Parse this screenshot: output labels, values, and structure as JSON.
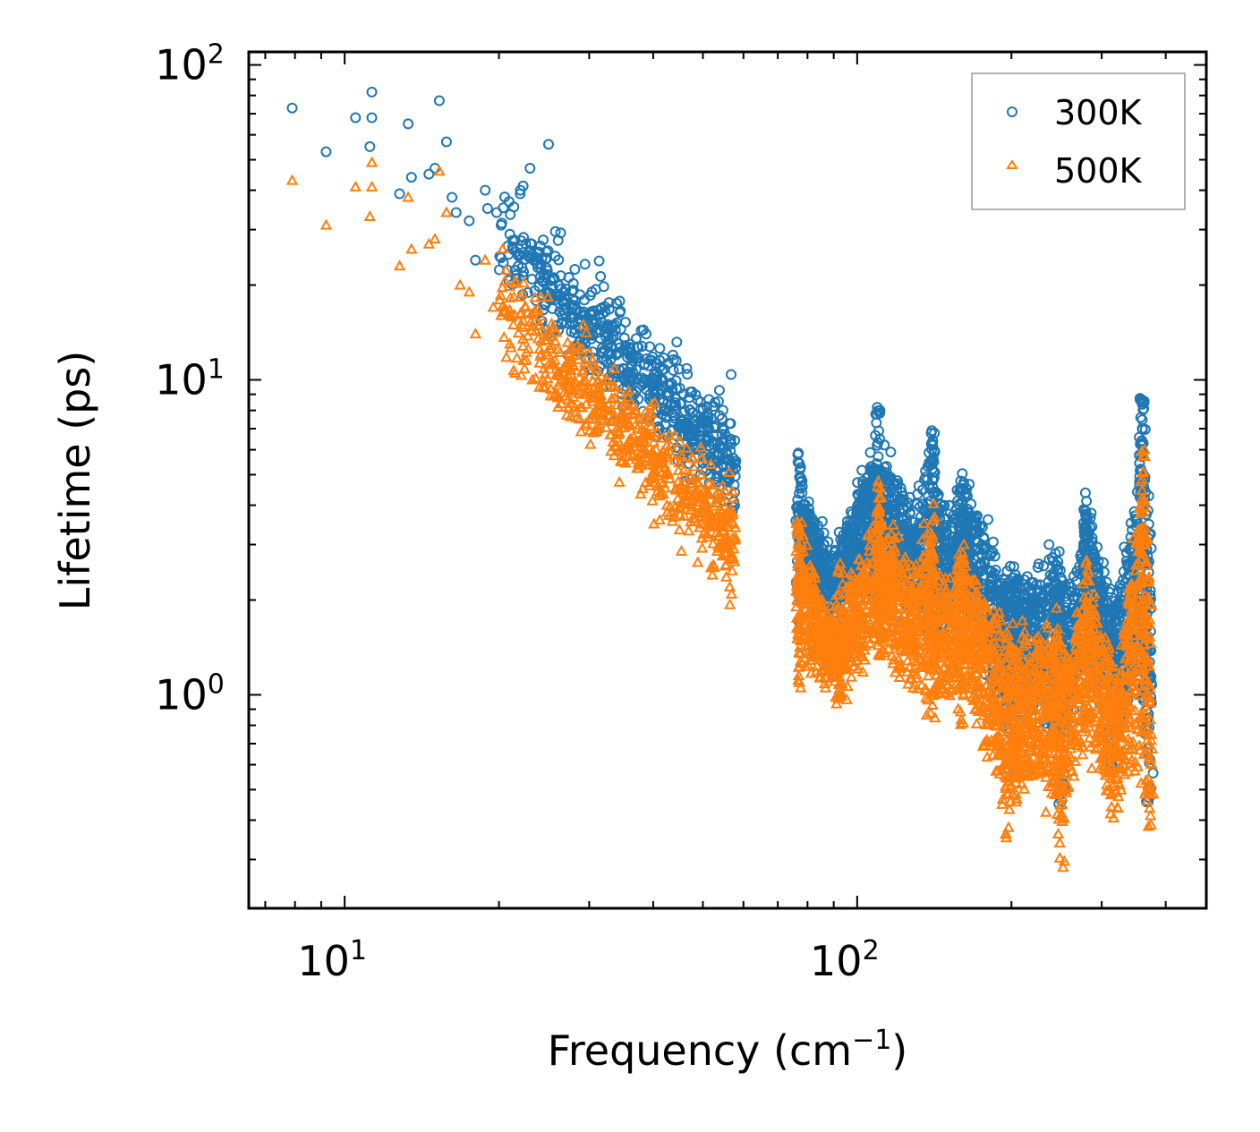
{
  "chart_data": {
    "type": "scatter",
    "xscale": "log",
    "yscale": "log",
    "xlabel": "Frequency (cm",
    "xlabel_sup": "−1",
    "xlabel_end": ")",
    "ylabel": "Lifetime (ps)",
    "xlim": [
      6.5,
      480
    ],
    "ylim": [
      0.21,
      110
    ],
    "xticks": [
      {
        "value": 10,
        "base": "10",
        "exp": "1"
      },
      {
        "value": 100,
        "base": "10",
        "exp": "2"
      }
    ],
    "yticks": [
      {
        "value": 1,
        "base": "10",
        "exp": "0"
      },
      {
        "value": 10,
        "base": "10",
        "exp": "1"
      },
      {
        "value": 100,
        "base": "10",
        "exp": "2"
      }
    ],
    "legend_position": "top-right",
    "series": [
      {
        "name": "300K",
        "marker": "circle",
        "color": "#1f77b4",
        "seed": 7
      },
      {
        "name": "500K",
        "marker": "triangle",
        "color": "#ff7f0e",
        "seed": 13
      }
    ],
    "features": {
      "low_freq_points_300K": [
        [
          7.9,
          73
        ],
        [
          9.2,
          53
        ],
        [
          10.5,
          68
        ],
        [
          11.3,
          82
        ],
        [
          11.3,
          68
        ],
        [
          11.2,
          55
        ],
        [
          12.8,
          39
        ],
        [
          13.3,
          65
        ],
        [
          13.5,
          44
        ],
        [
          14.6,
          45
        ],
        [
          15.0,
          47
        ],
        [
          15.3,
          77
        ],
        [
          15.8,
          57
        ],
        [
          16.2,
          38
        ],
        [
          16.5,
          34
        ],
        [
          17.5,
          32
        ],
        [
          18.0,
          24
        ],
        [
          18.8,
          40
        ],
        [
          19.0,
          35
        ],
        [
          19.8,
          34
        ],
        [
          20.2,
          31
        ],
        [
          21.0,
          29
        ],
        [
          22.0,
          39
        ],
        [
          23.0,
          47
        ],
        [
          25.0,
          56
        ]
      ],
      "low_freq_points_500K": [
        [
          7.9,
          43
        ],
        [
          9.2,
          31
        ],
        [
          10.5,
          41
        ],
        [
          11.3,
          49
        ],
        [
          11.3,
          41
        ],
        [
          11.2,
          33
        ],
        [
          12.8,
          23
        ],
        [
          13.3,
          38
        ],
        [
          13.5,
          26
        ],
        [
          14.6,
          27
        ],
        [
          15.0,
          28
        ],
        [
          15.3,
          46
        ],
        [
          15.8,
          34
        ],
        [
          16.8,
          20
        ],
        [
          17.5,
          19
        ],
        [
          18.0,
          14
        ],
        [
          18.8,
          24
        ],
        [
          19.5,
          17
        ],
        [
          20.2,
          16
        ],
        [
          21.0,
          13
        ],
        [
          21.5,
          10.5
        ]
      ],
      "cluster_range_300K": {
        "x": [
          20,
          58
        ],
        "y_at_start": 30,
        "y_at_end": 5.5
      },
      "cluster_range_500K": {
        "x": [
          20,
          58
        ],
        "y_at_start": 18,
        "y_at_end": 3.2
      },
      "band_peaks_300K": [
        [
          77,
          6.0
        ],
        [
          110,
          8.2
        ],
        [
          140,
          7.0
        ],
        [
          160,
          4.8
        ],
        [
          205,
          2.5
        ],
        [
          245,
          2.7
        ],
        [
          280,
          4.5
        ],
        [
          360,
          9.5
        ]
      ],
      "band_peaks_500K": [
        [
          77,
          3.6
        ],
        [
          110,
          4.8
        ],
        [
          140,
          4.3
        ],
        [
          160,
          2.8
        ],
        [
          205,
          1.5
        ],
        [
          245,
          1.7
        ],
        [
          280,
          2.7
        ],
        [
          360,
          6.2
        ]
      ],
      "band_troughs_500K": [
        [
          93,
          0.93
        ],
        [
          140,
          0.78
        ],
        [
          197,
          0.35
        ],
        [
          250,
          0.27
        ],
        [
          315,
          0.36
        ],
        [
          370,
          0.38
        ]
      ]
    }
  }
}
